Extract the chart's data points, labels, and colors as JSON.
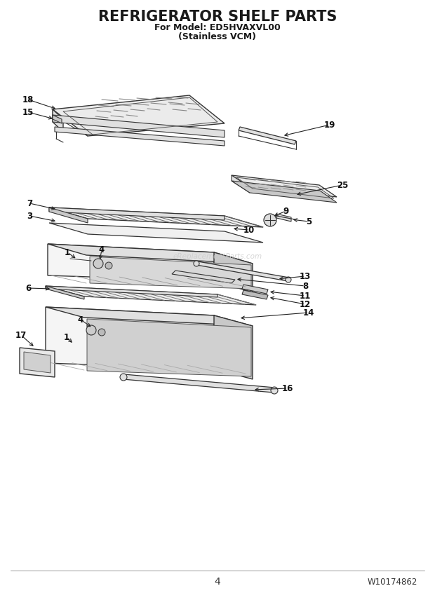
{
  "title": "REFRIGERATOR SHELF PARTS",
  "subtitle1": "For Model: ED5HVAXVL00",
  "subtitle2": "(Stainless VCM)",
  "page_number": "4",
  "part_number": "W10174862",
  "bg_color": "#ffffff",
  "text_color": "#1a1a1a",
  "watermark": "eReplacementParts.com",
  "line_color": "#333333",
  "fill_light": "#f5f5f5",
  "fill_mid": "#e0e0e0",
  "fill_dark": "#c8c8c8",
  "fill_glass": "#ebebeb"
}
